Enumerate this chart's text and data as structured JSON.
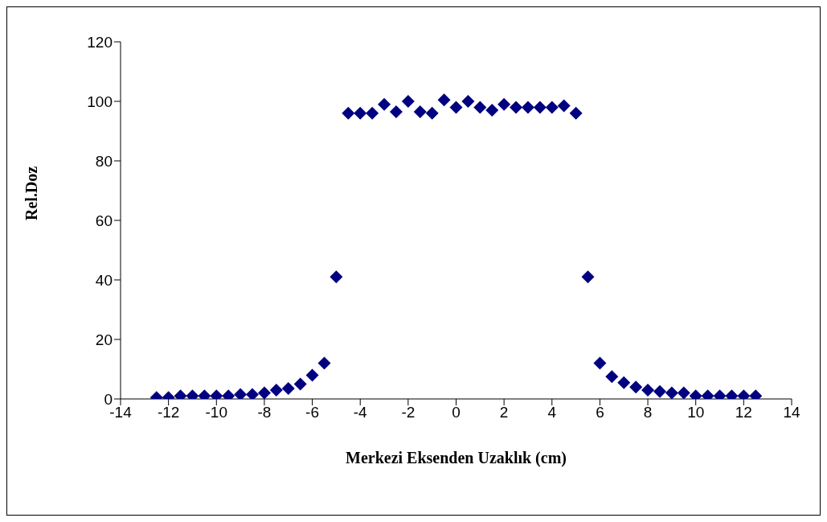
{
  "chart_data": {
    "type": "scatter",
    "xlabel": "Merkezi Eksenden Uzaklık (cm)",
    "ylabel": "Rel.Doz",
    "x": [
      -12.5,
      -12,
      -11.5,
      -11,
      -10.5,
      -10,
      -9.5,
      -9,
      -8.5,
      -8,
      -7.5,
      -7,
      -6.5,
      -6,
      -5.5,
      -5,
      -4.5,
      -4,
      -3.5,
      -3,
      -2.5,
      -2,
      -1.5,
      -1,
      -0.5,
      0,
      0.5,
      1,
      1.5,
      2,
      2.5,
      3,
      3.5,
      4,
      4.5,
      5,
      5.5,
      6,
      6.5,
      7,
      7.5,
      8,
      8.5,
      9,
      9.5,
      10,
      10.5,
      11,
      11.5,
      12,
      12.5
    ],
    "series": [
      {
        "color": "#000080",
        "values": [
          0.5,
          0.5,
          1,
          1,
          1,
          1,
          1,
          1.5,
          1.5,
          2,
          3,
          3.5,
          5,
          8,
          12,
          41,
          96,
          96,
          96,
          99,
          96.5,
          100,
          96.5,
          96,
          100.5,
          98,
          100,
          98,
          97,
          99,
          98,
          98,
          98,
          98,
          98.5,
          96,
          41,
          12,
          7.5,
          5.5,
          4,
          3,
          2.5,
          2,
          2,
          1,
          1,
          1,
          1,
          1,
          1
        ]
      }
    ],
    "marker": "diamond",
    "xlim": [
      -14,
      14
    ],
    "xticks": [
      -14,
      -12,
      -10,
      -8,
      -6,
      -4,
      -2,
      0,
      2,
      4,
      6,
      8,
      10,
      12,
      14
    ],
    "ylim": [
      0,
      120
    ],
    "yticks": [
      0,
      20,
      40,
      60,
      80,
      100,
      120
    ],
    "grid": false,
    "legend": false
  }
}
